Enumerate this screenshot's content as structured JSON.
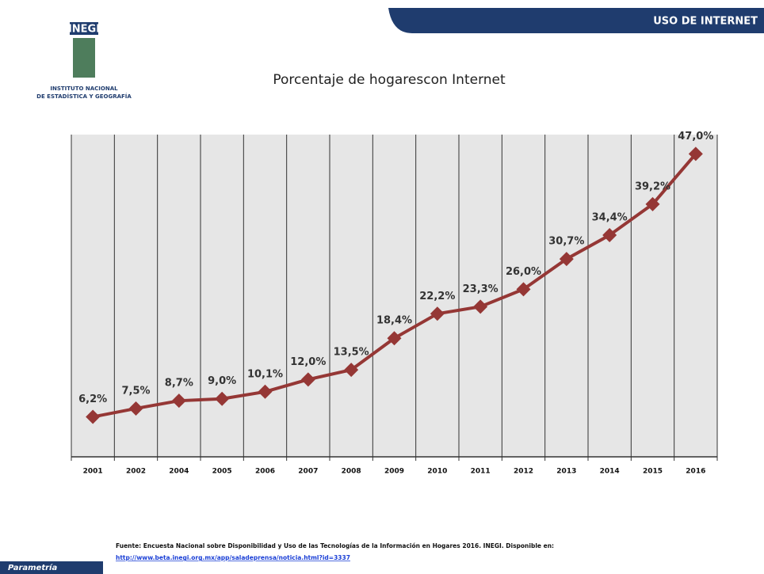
{
  "header": {
    "section": "USO DE INTERNET",
    "logo": "INEGI",
    "institute": [
      "INSTITUTO NACIONAL",
      "DE ESTADÍSTICA Y GEOGRAFÍA"
    ]
  },
  "chart_data": {
    "type": "line",
    "title": "Porcentaje de hogarescon Internet",
    "categories": [
      "2001",
      "2002",
      "2004",
      "2005",
      "2006",
      "2007",
      "2008",
      "2009",
      "2010",
      "2011",
      "2012",
      "2013",
      "2014",
      "2015",
      "2016"
    ],
    "series": [
      {
        "color": "#953735",
        "values": [
          6.2,
          7.5,
          8.7,
          9.0,
          10.1,
          12.0,
          13.5,
          18.4,
          22.2,
          23.3,
          26.0,
          30.7,
          34.4,
          39.2,
          47.0
        ],
        "value_labels": [
          "6,2%",
          "7,5%",
          "8,7%",
          "9,0%",
          "10,1%",
          "12,0%",
          "13,5%",
          "18,4%",
          "22,2%",
          "23,3%",
          "26,0%",
          "30,7%",
          "34,4%",
          "39,2%",
          "47,0%"
        ]
      }
    ],
    "ylim": [
      0,
      50
    ],
    "grid": true
  },
  "footer": {
    "source": "Fuente: Encuesta Nacional sobre Disponibilidad y Uso de las Tecnologías de la Información en Hogares 2016. INEGI. Disponible en:",
    "link": "http://www.beta.inegi.org.mx/app/saladeprensa/noticia.html?id=3337",
    "brand": "Parametría"
  }
}
